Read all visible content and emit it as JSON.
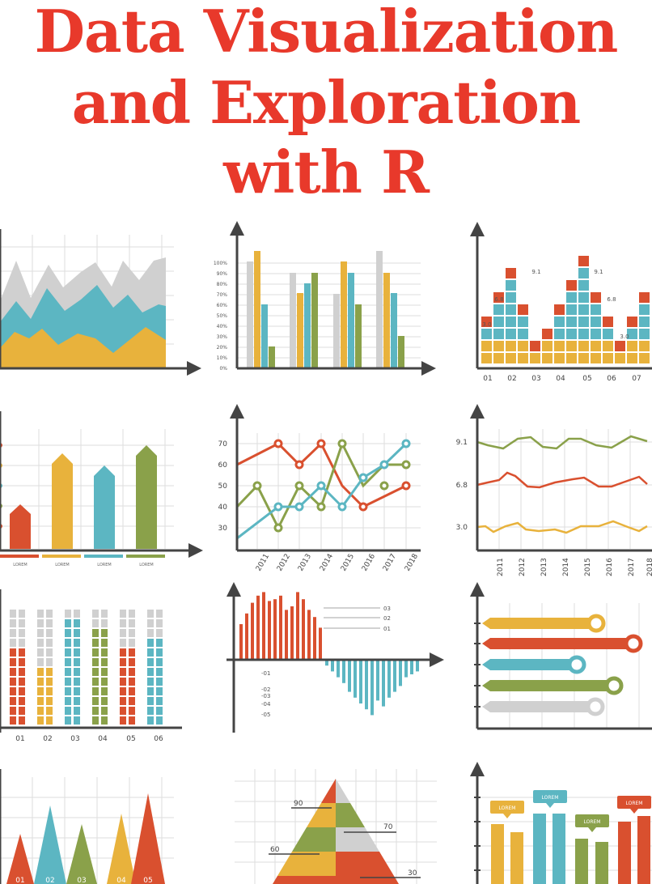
{
  "title": {
    "line1": "Data Visualization",
    "line2": "and Exploration",
    "line3": "with R"
  },
  "colors": {
    "title": "#e8392b",
    "red": "#d9502f",
    "orange": "#e8b23c",
    "teal": "#5cb6c2",
    "green": "#8aa14a",
    "gray": "#d0d0d0",
    "axis": "#444444",
    "grid": "#dddddd"
  },
  "panels": {
    "bar_percent_ticks": [
      "100%",
      "90%",
      "80%",
      "70%",
      "60%",
      "50%",
      "40%",
      "30%",
      "20%",
      "10%",
      "0%"
    ],
    "block_chart": {
      "x_labels": [
        "01",
        "02",
        "03",
        "04",
        "05",
        "06",
        "07"
      ],
      "annotations": [
        "9.1",
        "9.1",
        "6.8",
        "6.8",
        "3.0",
        "3.0"
      ]
    },
    "arrow_bars_legend": [
      "LOREM",
      "LOREM",
      "LOREM",
      "LOREM"
    ],
    "multi_line": {
      "y_ticks": [
        "70",
        "60",
        "50",
        "40",
        "30"
      ],
      "x_labels": [
        "2011",
        "2012",
        "2013",
        "2014",
        "2015",
        "2016",
        "2017",
        "2018"
      ]
    },
    "dot_lines": {
      "y_ticks": [
        "9.1",
        "6.8",
        "3.0"
      ],
      "x_labels": [
        "2011",
        "2012",
        "2013",
        "2014",
        "2015",
        "2016",
        "2017",
        "2018"
      ]
    },
    "stacked_blocks": {
      "x_labels": [
        "01",
        "02",
        "03",
        "04",
        "05",
        "06"
      ]
    },
    "bidirectional_bars": {
      "pos_labels": [
        "03",
        "02",
        "01"
      ],
      "neg_labels": [
        "-01",
        "-02",
        "-03",
        "-04",
        "-05"
      ]
    },
    "triangles": {
      "x_labels": [
        "01",
        "02",
        "03",
        "04",
        "05"
      ]
    },
    "pyramid": {
      "labels": [
        "90",
        "70",
        "60",
        "30"
      ]
    },
    "label_bars": {
      "labels": [
        "LOREM",
        "LOREM",
        "LOREM",
        "LOREM"
      ]
    }
  }
}
